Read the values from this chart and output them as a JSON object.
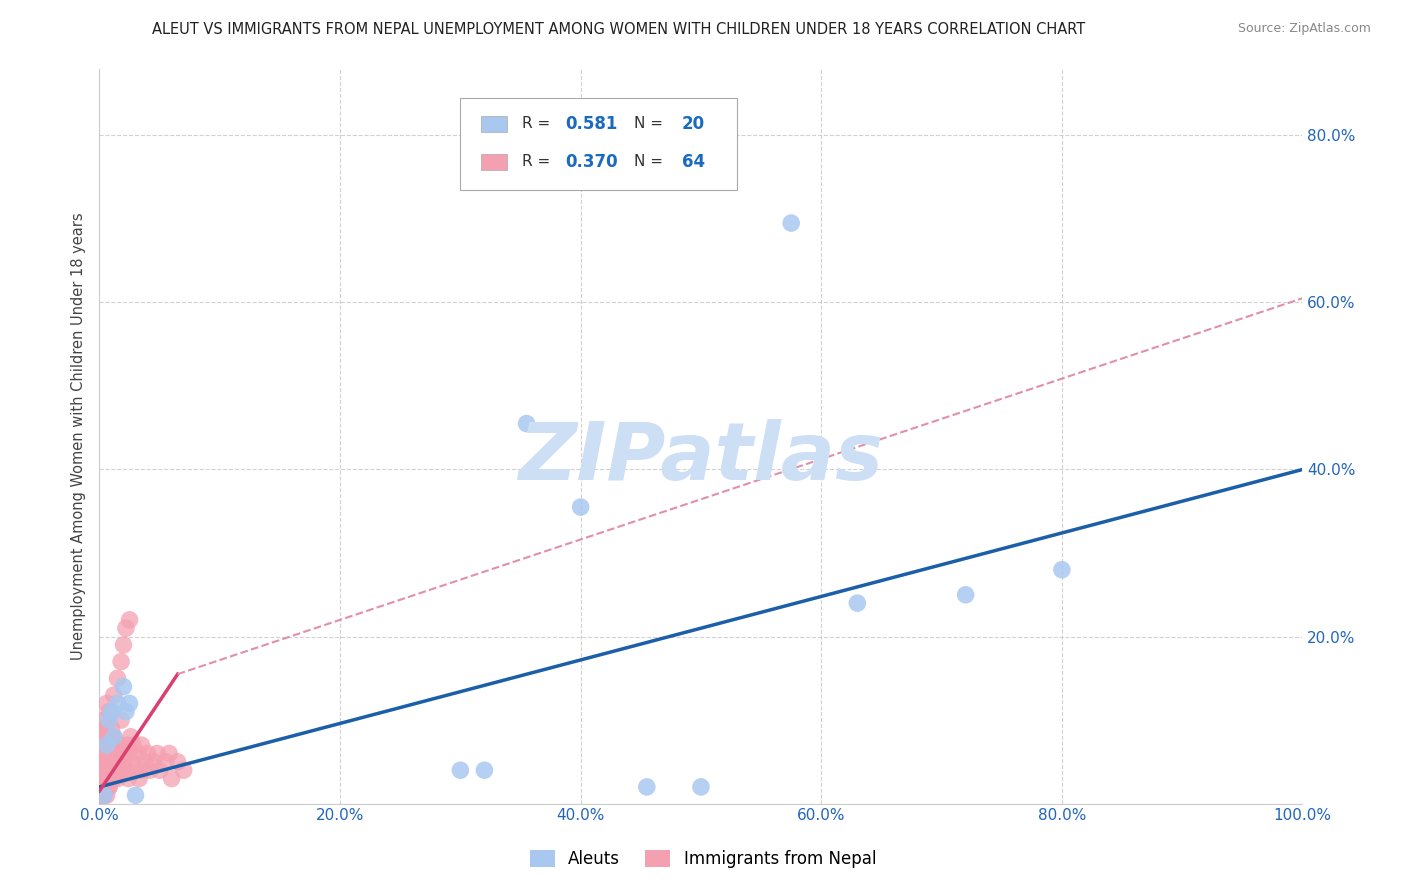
{
  "title": "ALEUT VS IMMIGRANTS FROM NEPAL UNEMPLOYMENT AMONG WOMEN WITH CHILDREN UNDER 18 YEARS CORRELATION CHART",
  "source": "Source: ZipAtlas.com",
  "ylabel": "Unemployment Among Women with Children Under 18 years",
  "xticklabels": [
    "0.0%",
    "20.0%",
    "40.0%",
    "60.0%",
    "80.0%",
    "100.0%"
  ],
  "yticklabels_right": [
    "20.0%",
    "40.0%",
    "60.0%",
    "80.0%"
  ],
  "xlim": [
    0,
    1.0
  ],
  "ylim": [
    0,
    0.88
  ],
  "aleuts_R": "0.581",
  "aleuts_N": "20",
  "nepal_R": "0.370",
  "nepal_N": "64",
  "aleut_color": "#a8c8f0",
  "nepal_color": "#f4a0b0",
  "aleut_line_color": "#1a5fa8",
  "nepal_line_solid_color": "#d94070",
  "nepal_line_dashed_color": "#e090a8",
  "watermark_text": "ZIPatlas",
  "watermark_color": "#ccdff5",
  "background_color": "#ffffff",
  "grid_color": "#cccccc",
  "legend_label_1": "Aleuts",
  "legend_label_2": "Immigrants from Nepal",
  "aleuts_x": [
    0.004,
    0.006,
    0.008,
    0.01,
    0.012,
    0.015,
    0.02,
    0.022,
    0.025,
    0.03,
    0.3,
    0.32,
    0.355,
    0.4,
    0.455,
    0.5,
    0.575,
    0.63,
    0.72,
    0.8
  ],
  "aleuts_y": [
    0.01,
    0.07,
    0.1,
    0.11,
    0.08,
    0.12,
    0.14,
    0.11,
    0.12,
    0.01,
    0.04,
    0.04,
    0.455,
    0.355,
    0.02,
    0.02,
    0.695,
    0.24,
    0.25,
    0.28
  ],
  "nepal_x": [
    0.001,
    0.001,
    0.001,
    0.002,
    0.002,
    0.002,
    0.003,
    0.003,
    0.003,
    0.003,
    0.004,
    0.004,
    0.004,
    0.005,
    0.005,
    0.005,
    0.006,
    0.006,
    0.007,
    0.007,
    0.007,
    0.008,
    0.008,
    0.009,
    0.009,
    0.01,
    0.01,
    0.01,
    0.011,
    0.012,
    0.012,
    0.013,
    0.014,
    0.015,
    0.015,
    0.016,
    0.017,
    0.018,
    0.018,
    0.02,
    0.021,
    0.022,
    0.023,
    0.024,
    0.025,
    0.026,
    0.027,
    0.028,
    0.03,
    0.032,
    0.033,
    0.035,
    0.036,
    0.038,
    0.04,
    0.042,
    0.045,
    0.048,
    0.05,
    0.055,
    0.058,
    0.06,
    0.065,
    0.07
  ],
  "nepal_y": [
    0.01,
    0.02,
    0.03,
    0.01,
    0.03,
    0.06,
    0.01,
    0.03,
    0.05,
    0.07,
    0.01,
    0.04,
    0.07,
    0.02,
    0.05,
    0.09,
    0.03,
    0.07,
    0.04,
    0.06,
    0.08,
    0.02,
    0.05,
    0.03,
    0.07,
    0.04,
    0.07,
    0.09,
    0.05,
    0.03,
    0.08,
    0.06,
    0.04,
    0.03,
    0.07,
    0.05,
    0.07,
    0.04,
    0.1,
    0.05,
    0.06,
    0.04,
    0.07,
    0.03,
    0.06,
    0.08,
    0.05,
    0.07,
    0.04,
    0.06,
    0.03,
    0.07,
    0.04,
    0.05,
    0.06,
    0.04,
    0.05,
    0.06,
    0.04,
    0.05,
    0.06,
    0.03,
    0.05,
    0.04
  ],
  "nepal_cluster_x": [
    0.001,
    0.001,
    0.002,
    0.002,
    0.003,
    0.003,
    0.004,
    0.004,
    0.005,
    0.006,
    0.007,
    0.008,
    0.009,
    0.01,
    0.012,
    0.015,
    0.02,
    0.025,
    0.022,
    0.018,
    0.001,
    0.001,
    0.001,
    0.002,
    0.002,
    0.003,
    0.005,
    0.006,
    0.007,
    0.008
  ],
  "nepal_cluster_y": [
    0.02,
    0.05,
    0.03,
    0.07,
    0.04,
    0.08,
    0.06,
    0.1,
    0.09,
    0.12,
    0.07,
    0.11,
    0.06,
    0.08,
    0.13,
    0.15,
    0.19,
    0.22,
    0.21,
    0.17,
    0.01,
    0.02,
    0.03,
    0.01,
    0.04,
    0.02,
    0.03,
    0.01,
    0.03,
    0.02
  ],
  "aleut_line_x": [
    0.0,
    1.0
  ],
  "aleut_line_y": [
    0.02,
    0.4
  ],
  "nepal_solid_line_x": [
    0.0,
    0.065
  ],
  "nepal_solid_line_y": [
    0.015,
    0.155
  ],
  "nepal_dashed_line_x": [
    0.065,
    1.0
  ],
  "nepal_dashed_line_y": [
    0.155,
    0.605
  ]
}
